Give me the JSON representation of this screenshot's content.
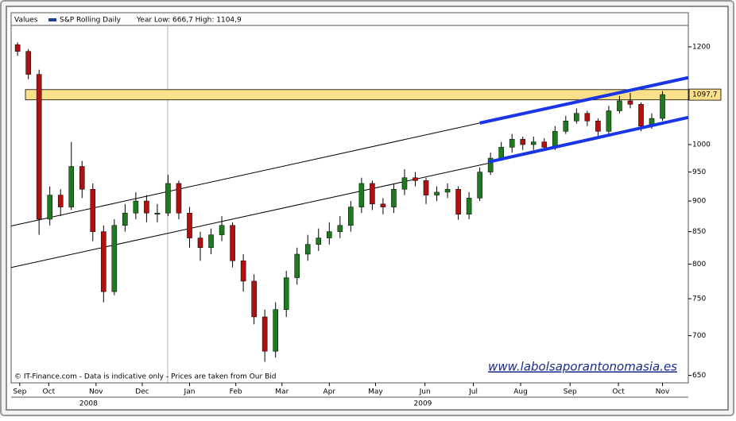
{
  "chart_data": {
    "type": "candlestick",
    "legend_title": "Values",
    "series": [
      {
        "name": "S&P Rolling Daily",
        "color": "#1f3f9f",
        "up_color": "#1e7a1e",
        "down_color": "#b01010",
        "open": [
          1205,
          1190,
          1140,
          870,
          910,
          890,
          960,
          920,
          850,
          760,
          860,
          880,
          900,
          878,
          880,
          930,
          880,
          840,
          825,
          845,
          860,
          805,
          775,
          725,
          680,
          735,
          780,
          815,
          830,
          840,
          850,
          860,
          890,
          930,
          895,
          890,
          920,
          940,
          935,
          910,
          915,
          920,
          878,
          905,
          950,
          975,
          995,
          1010,
          1000,
          1005,
          995,
          1025,
          1045,
          1060,
          1045,
          1025,
          1065,
          1085,
          1078,
          1035,
          1050
        ],
        "high": [
          1210,
          1195,
          1150,
          925,
          920,
          1005,
          970,
          930,
          860,
          870,
          895,
          915,
          910,
          895,
          945,
          935,
          890,
          850,
          855,
          875,
          865,
          815,
          785,
          735,
          745,
          790,
          825,
          845,
          855,
          865,
          875,
          900,
          940,
          935,
          905,
          930,
          955,
          950,
          940,
          925,
          930,
          925,
          915,
          958,
          985,
          1005,
          1020,
          1015,
          1015,
          1012,
          1035,
          1055,
          1070,
          1065,
          1050,
          1075,
          1095,
          1101,
          1082,
          1060,
          1104.9
        ],
        "low": [
          1180,
          1130,
          845,
          860,
          875,
          885,
          905,
          835,
          745,
          755,
          850,
          870,
          865,
          865,
          875,
          870,
          825,
          805,
          815,
          835,
          795,
          760,
          715,
          666.7,
          672,
          725,
          770,
          805,
          820,
          830,
          840,
          850,
          880,
          885,
          878,
          880,
          910,
          925,
          895,
          900,
          905,
          869,
          870,
          900,
          945,
          970,
          985,
          990,
          990,
          988,
          990,
          1020,
          1040,
          1035,
          1015,
          1020,
          1060,
          1070,
          1025,
          1030,
          1045
        ],
        "close": [
          1190,
          1140,
          870,
          910,
          890,
          960,
          920,
          850,
          760,
          860,
          880,
          900,
          880,
          880,
          930,
          880,
          840,
          825,
          845,
          860,
          805,
          775,
          725,
          680,
          735,
          780,
          815,
          830,
          840,
          850,
          860,
          890,
          930,
          895,
          890,
          920,
          940,
          935,
          910,
          915,
          920,
          878,
          905,
          950,
          975,
          995,
          1010,
          1000,
          1005,
          995,
          1025,
          1045,
          1060,
          1045,
          1025,
          1065,
          1085,
          1078,
          1035,
          1050,
          1097.7
        ]
      }
    ],
    "legend_note": "Year Low: 666,7 High: 1104,9",
    "last_value": 1097.7,
    "last_value_label": "1097,7",
    "band": {
      "low": 1087,
      "high": 1108,
      "color": "#fbe08a"
    },
    "trend_lines": [
      {
        "color": "#000000",
        "width": 1,
        "from": [
          -0.6,
          859
        ],
        "to": [
          43.0,
          1041
        ]
      },
      {
        "color": "#000000",
        "width": 1,
        "from": [
          -0.6,
          795
        ],
        "to": [
          44.1,
          967
        ]
      },
      {
        "color": "#1a35e6",
        "width": 4,
        "from": [
          43.0,
          1041
        ],
        "to": [
          62.4,
          1133
        ]
      },
      {
        "color": "#1a35e6",
        "width": 4,
        "from": [
          43.8,
          968
        ],
        "to": [
          62.4,
          1052
        ]
      }
    ],
    "log_scale": true,
    "xlim": [
      -0.6,
      62.4
    ],
    "ylim": [
      641,
      1249
    ],
    "yticks": [
      650,
      700,
      750,
      800,
      850,
      900,
      950,
      1000,
      1200
    ],
    "xticks": [
      {
        "value": 0.2,
        "label": "Sep"
      },
      {
        "value": 2.9,
        "label": "Oct"
      },
      {
        "value": 7.3,
        "label": "Nov"
      },
      {
        "value": 11.6,
        "label": "Dec"
      },
      {
        "value": 16,
        "label": "Jan"
      },
      {
        "value": 20.3,
        "label": "Feb"
      },
      {
        "value": 24.6,
        "label": "Mar"
      },
      {
        "value": 29,
        "label": "Apr"
      },
      {
        "value": 33.3,
        "label": "May"
      },
      {
        "value": 37.9,
        "label": "Jun"
      },
      {
        "value": 42.4,
        "label": "Jul"
      },
      {
        "value": 46.8,
        "label": "Aug"
      },
      {
        "value": 51.4,
        "label": "Sep"
      },
      {
        "value": 55.9,
        "label": "Oct"
      },
      {
        "value": 60,
        "label": "Nov"
      }
    ],
    "year_labels": [
      {
        "value": 6.6,
        "label": "2008"
      },
      {
        "value": 37.7,
        "label": "2009"
      }
    ],
    "footnote": "© IT-Finance.com - Data is indicative only - Prices are taken from Our Bid",
    "watermark": "www.labolsaporantonomasia.es"
  }
}
